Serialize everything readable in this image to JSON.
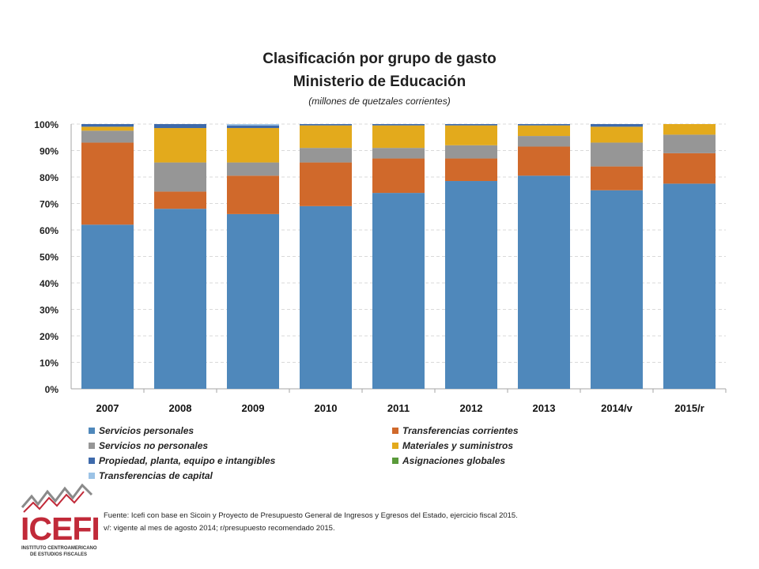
{
  "chart_data": {
    "type": "bar",
    "stacked": true,
    "percent": true,
    "title": "Clasificación por grupo de gasto",
    "subtitle_line": "Ministerio de Educación",
    "units_note": "(millones de quetzales corrientes)",
    "categories": [
      "2007",
      "2008",
      "2009",
      "2010",
      "2011",
      "2012",
      "2013",
      "2014/v",
      "2015/r"
    ],
    "ylim": [
      0,
      100
    ],
    "yticks": [
      "0%",
      "10%",
      "20%",
      "30%",
      "40%",
      "50%",
      "60%",
      "70%",
      "80%",
      "90%",
      "100%"
    ],
    "grid": true,
    "legend_position": "bottom",
    "series": [
      {
        "name": "Servicios personales",
        "color": "#4f88bb",
        "values": [
          62,
          68,
          66,
          69,
          74,
          78.5,
          80.5,
          75,
          77.5
        ]
      },
      {
        "name": "Transferencias corrientes",
        "color": "#d0692b",
        "values": [
          31,
          6.5,
          14.5,
          16.5,
          13,
          8.5,
          11,
          9,
          11.5
        ]
      },
      {
        "name": "Servicios no personales",
        "color": "#969696",
        "values": [
          4.5,
          11,
          5,
          5.5,
          4,
          5,
          4,
          9,
          7
        ]
      },
      {
        "name": "Materiales y suministros",
        "color": "#e3aa1c",
        "values": [
          1.5,
          13,
          13,
          8.5,
          8.5,
          7.5,
          4,
          6,
          4
        ]
      },
      {
        "name": "Propiedad, planta, equipo e intangibles",
        "color": "#3e6aab",
        "values": [
          1,
          1.5,
          1,
          0.5,
          0.5,
          0.5,
          0.5,
          1,
          0
        ]
      },
      {
        "name": "Asignaciones globales",
        "color": "#5a9a3a",
        "values": [
          0,
          0,
          0,
          0,
          0,
          0,
          0,
          0,
          0
        ]
      },
      {
        "name": "Transferencias de capital",
        "color": "#9cc3e6",
        "values": [
          0,
          0,
          0.5,
          0,
          0,
          0,
          0,
          0,
          0
        ]
      }
    ]
  },
  "footer": {
    "source": "Fuente: Icefi con base en Sicoin y Proyecto de Presupuesto General de Ingresos y Egresos del Estado, ejercicio fiscal 2015.",
    "note": "v/: vigente al mes de agosto 2014; r/presupuesto recomendado 2015."
  },
  "logo": {
    "name": "ICEFI",
    "sub1": "INSTITUTO CENTROAMERICANO",
    "sub2": "DE ESTUDIOS FISCALES"
  }
}
